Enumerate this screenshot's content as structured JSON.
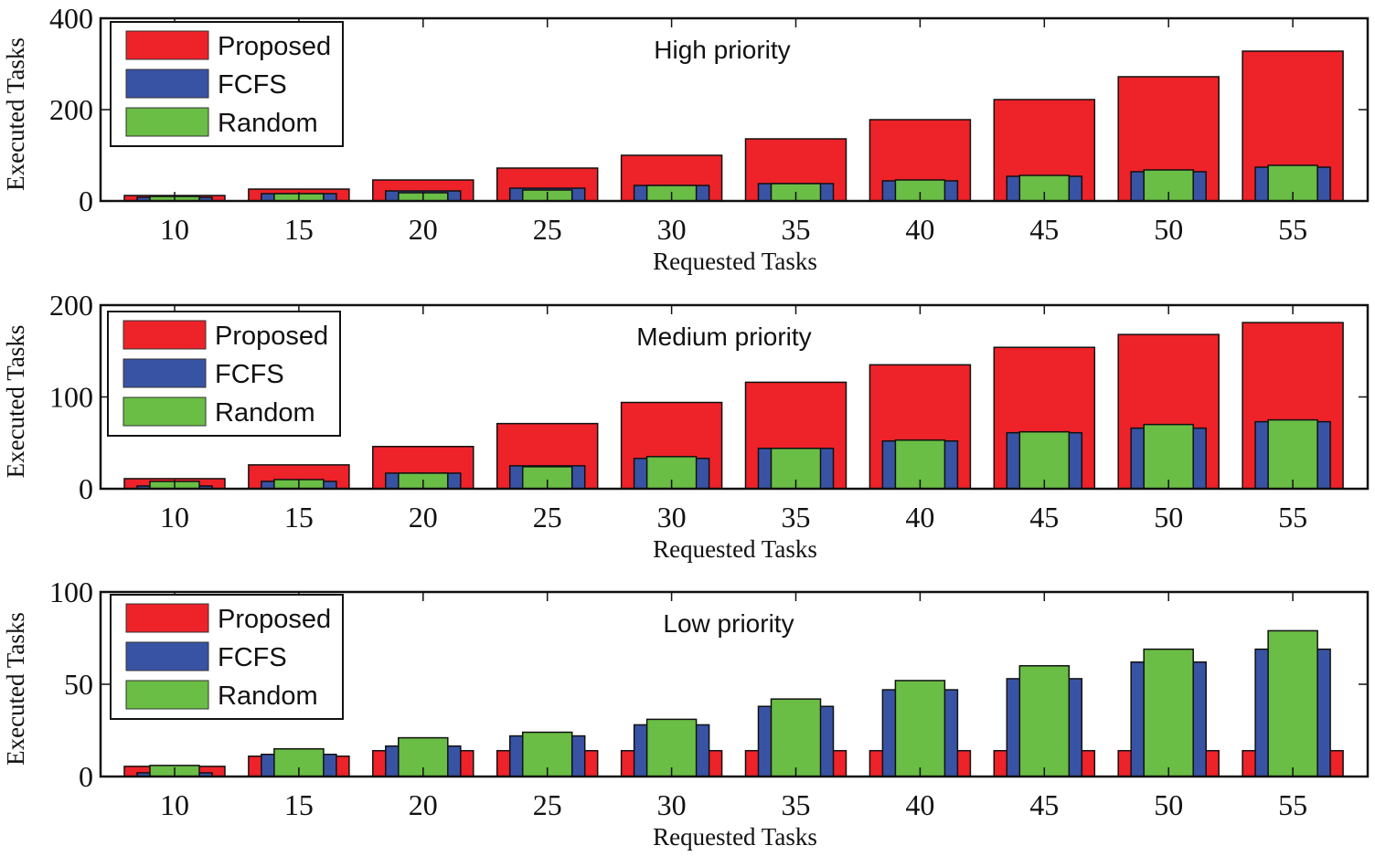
{
  "chart_data": [
    {
      "type": "bar",
      "title": "High priority",
      "xlabel": "Requested Tasks",
      "ylabel": "Executed Tasks",
      "categories": [
        "10",
        "15",
        "20",
        "25",
        "30",
        "35",
        "40",
        "45",
        "50",
        "55"
      ],
      "ylim": [
        0,
        400
      ],
      "yticks": [
        0,
        200,
        400
      ],
      "grid": false,
      "legend": "top-left",
      "bar_mode": "overlaid",
      "series": [
        {
          "name": "Proposed",
          "color": "#ee2229",
          "values": [
            12,
            26,
            46,
            72,
            100,
            136,
            178,
            222,
            272,
            328
          ]
        },
        {
          "name": "FCFS",
          "color": "#3953a4",
          "values": [
            8,
            16,
            22,
            28,
            34,
            38,
            44,
            54,
            64,
            74
          ]
        },
        {
          "name": "Random",
          "color": "#6abd45",
          "values": [
            10,
            16,
            18,
            24,
            34,
            38,
            46,
            56,
            68,
            78
          ]
        }
      ]
    },
    {
      "type": "bar",
      "title": "Medium priority",
      "xlabel": "Requested Tasks",
      "ylabel": "Executed Tasks",
      "categories": [
        "10",
        "15",
        "20",
        "25",
        "30",
        "35",
        "40",
        "45",
        "50",
        "55"
      ],
      "ylim": [
        0,
        200
      ],
      "yticks": [
        0,
        100,
        200
      ],
      "grid": false,
      "legend": "top-left",
      "bar_mode": "overlaid",
      "series": [
        {
          "name": "Proposed",
          "color": "#ee2229",
          "values": [
            11,
            26,
            46,
            71,
            94,
            116,
            135,
            154,
            168,
            181
          ]
        },
        {
          "name": "FCFS",
          "color": "#3953a4",
          "values": [
            3,
            8,
            17,
            25,
            33,
            44,
            52,
            61,
            66,
            73
          ]
        },
        {
          "name": "Random",
          "color": "#6abd45",
          "values": [
            8,
            10,
            17,
            24,
            35,
            44,
            53,
            62,
            70,
            75
          ]
        }
      ]
    },
    {
      "type": "bar",
      "title": "Low priority",
      "xlabel": "Requested Tasks",
      "ylabel": "Executed Tasks",
      "categories": [
        "10",
        "15",
        "20",
        "25",
        "30",
        "35",
        "40",
        "45",
        "50",
        "55"
      ],
      "ylim": [
        0,
        100
      ],
      "yticks": [
        0,
        50,
        100
      ],
      "grid": false,
      "legend": "top-left",
      "bar_mode": "overlaid",
      "series": [
        {
          "name": "Proposed",
          "color": "#ee2229",
          "values": [
            5.5,
            11,
            14,
            14,
            14,
            14,
            14,
            14,
            14,
            14
          ]
        },
        {
          "name": "FCFS",
          "color": "#3953a4",
          "values": [
            2,
            12,
            16.5,
            22,
            28,
            38,
            47,
            53,
            62,
            69
          ]
        },
        {
          "name": "Random",
          "color": "#6abd45",
          "values": [
            6,
            15,
            21,
            24,
            31,
            42,
            52,
            60,
            69,
            79
          ]
        }
      ]
    }
  ]
}
